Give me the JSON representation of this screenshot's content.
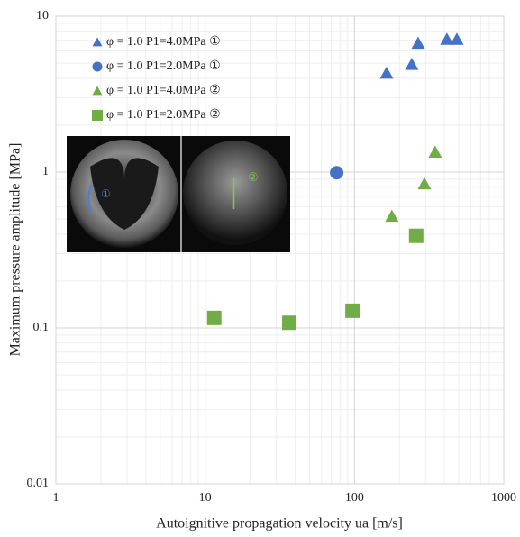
{
  "chart_data": {
    "type": "scatter",
    "x_label": "Autoignitive propagation velocity ua [m/s]",
    "y_label": "Maximum pressure amplitude [MPa]",
    "x_log": true,
    "y_log": true,
    "grid": true,
    "legend": "upper-left",
    "xlim": [
      1,
      1000
    ],
    "ylim": [
      0.01,
      10
    ],
    "xticks": [
      1,
      10,
      100,
      1000
    ],
    "yticks": [
      0.01,
      0.1,
      1,
      10
    ],
    "inset_labels": [
      "①",
      "②"
    ],
    "series": [
      {
        "name": "φ = 1.0 P1=4.0MPa ①",
        "color": "#4472c4",
        "marker": "triangle",
        "x": [
          164,
          242,
          267,
          416,
          485
        ],
        "values": [
          4.3,
          4.9,
          6.7,
          7.1,
          7.1
        ]
      },
      {
        "name": "φ = 1.0 P1=2.0MPa ①",
        "color": "#4472c4",
        "marker": "circle",
        "x": [
          76
        ],
        "values": [
          0.99
        ]
      },
      {
        "name": "φ = 1.0 P1=4.0MPa ②",
        "color": "#70ad47",
        "marker": "triangle",
        "x": [
          178,
          294,
          347
        ],
        "values": [
          0.52,
          0.84,
          1.34
        ]
      },
      {
        "name": "φ = 1.0 P1=2.0MPa ②",
        "color": "#70ad47",
        "marker": "square",
        "x": [
          11.5,
          36.6,
          97,
          259
        ],
        "values": [
          0.116,
          0.108,
          0.129,
          0.39
        ]
      }
    ]
  }
}
